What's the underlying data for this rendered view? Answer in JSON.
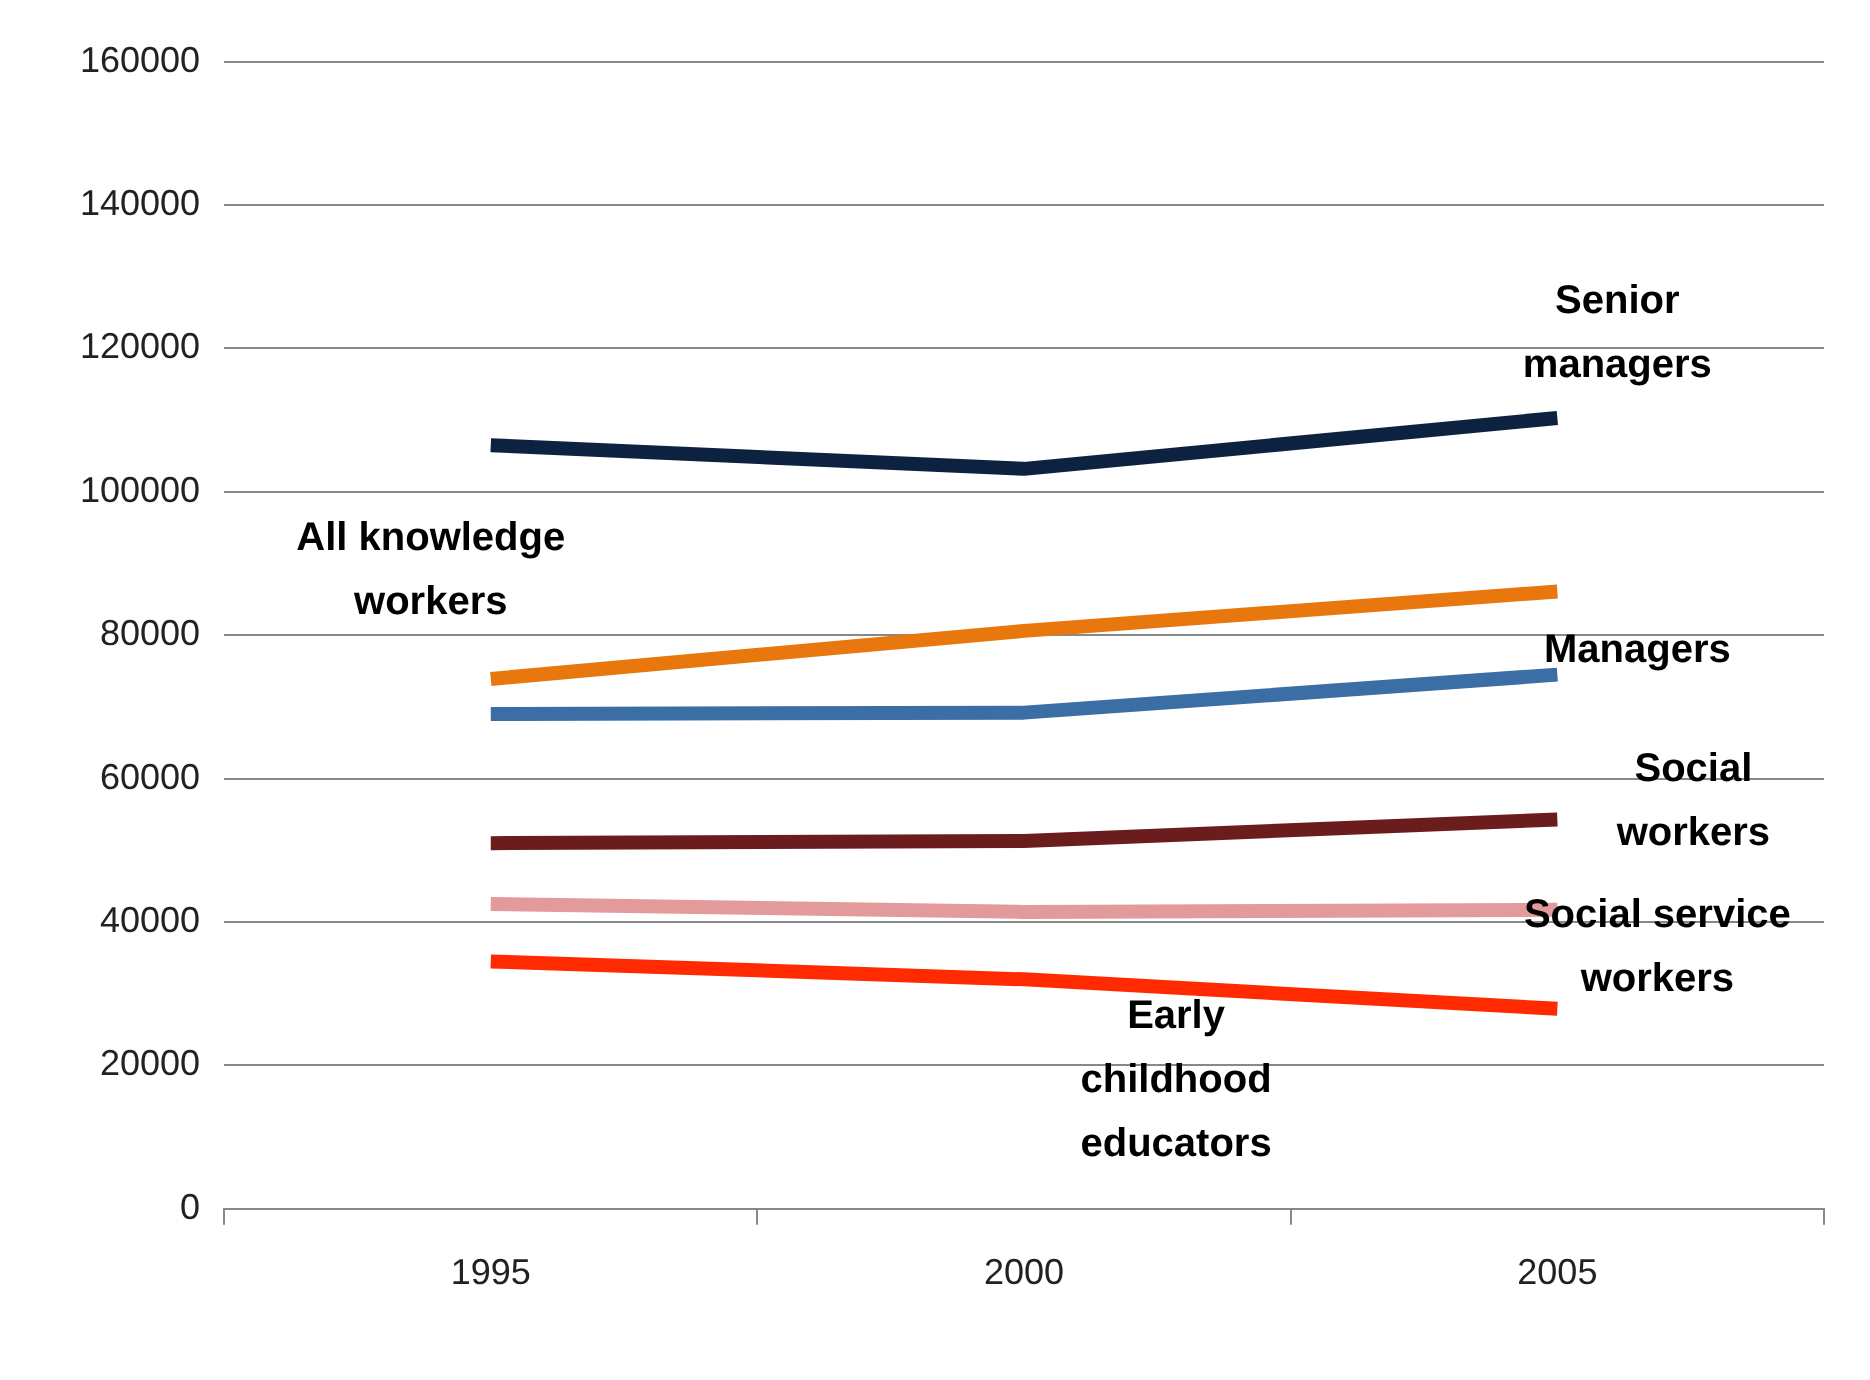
{
  "chart_data": {
    "type": "line",
    "categories": [
      "1995",
      "2000",
      "2005"
    ],
    "series": [
      {
        "name": "Senior managers",
        "color": "#0d2240",
        "values": [
          106500,
          103200,
          110300
        ]
      },
      {
        "name": "All knowledge workers",
        "color": "#e8770e",
        "values": [
          73900,
          80600,
          86100
        ]
      },
      {
        "name": "Managers",
        "color": "#3a6ea5",
        "values": [
          69000,
          69200,
          74500
        ]
      },
      {
        "name": "Social workers",
        "color": "#6b1c1c",
        "values": [
          51000,
          51300,
          54300
        ]
      },
      {
        "name": "Social service workers",
        "color": "#e39a9a",
        "values": [
          42500,
          41400,
          41700
        ]
      },
      {
        "name": "Early childhood educators",
        "color": "#ff2a00",
        "values": [
          34500,
          32000,
          27900
        ]
      }
    ],
    "ylim": [
      0,
      160000
    ],
    "yticks": [
      0,
      20000,
      40000,
      60000,
      80000,
      100000,
      120000,
      140000,
      160000
    ],
    "grid": "y",
    "legend": false,
    "marker": "none",
    "line_style": "solid"
  }
}
